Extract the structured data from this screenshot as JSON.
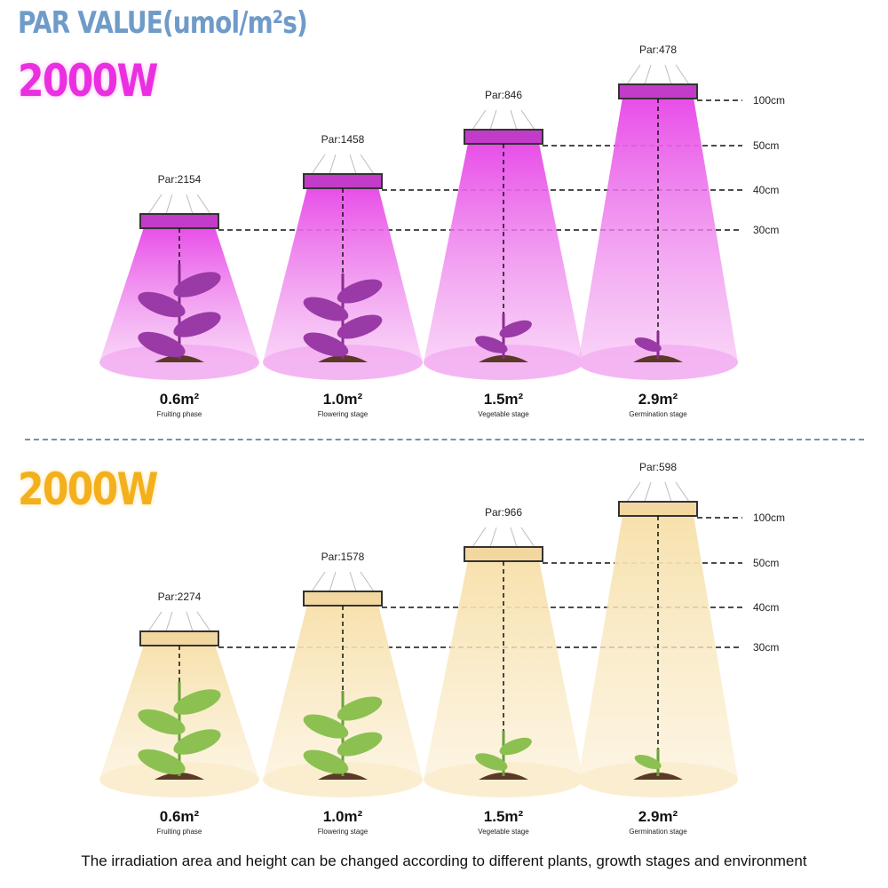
{
  "title": "PAR VALUE(umol/m²s)",
  "panels": [
    {
      "wattage": "2000W",
      "light": "purple",
      "colors": {
        "cone": "#e84ee8",
        "pool": "#f4b6f2",
        "lamp": "#c23bc9"
      },
      "lamps": [
        {
          "par": "Par:2154",
          "height": "30cm",
          "area": "0.6m²",
          "stage": "Fruiting phase"
        },
        {
          "par": "Par:1458",
          "height": "40cm",
          "area": "1.0m²",
          "stage": "Flowering stage"
        },
        {
          "par": "Par:846",
          "height": "50cm",
          "area": "1.5m²",
          "stage": "Vegetable stage"
        },
        {
          "par": "Par:478",
          "height": "100cm",
          "area": "2.9m²",
          "stage": "Germination stage"
        }
      ]
    },
    {
      "wattage": "2000W",
      "light": "warm white",
      "colors": {
        "cone": "#f7e1ad",
        "pool": "#fbeed0",
        "lamp": "#f2d7a0"
      },
      "lamps": [
        {
          "par": "Par:2274",
          "height": "30cm",
          "area": "0.6m²",
          "stage": "Fruiting phase"
        },
        {
          "par": "Par:1578",
          "height": "40cm",
          "area": "1.0m²",
          "stage": "Flowering stage"
        },
        {
          "par": "Par:966",
          "height": "50cm",
          "area": "1.5m²",
          "stage": "Vegetable stage"
        },
        {
          "par": "Par:598",
          "height": "100cm",
          "area": "2.9m²",
          "stage": "Germination stage"
        }
      ]
    }
  ],
  "caption": "The irradiation area and height can be changed according to different plants, growth stages and environment"
}
